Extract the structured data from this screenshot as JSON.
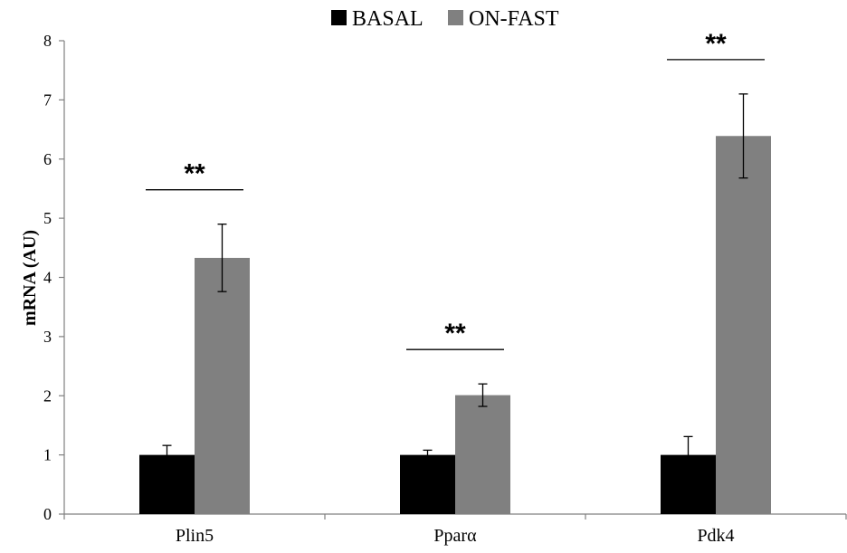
{
  "chart_data": {
    "type": "bar",
    "ylabel": "mRNA (AU)",
    "ylim": [
      0,
      8
    ],
    "yticks": [
      0,
      1,
      2,
      3,
      4,
      5,
      6,
      7,
      8
    ],
    "categories": [
      "Plin5",
      "Pparα",
      "Pdk4"
    ],
    "series": [
      {
        "name": "BASAL",
        "color": "#000000",
        "values": [
          1.0,
          1.0,
          1.0
        ],
        "errors": [
          0.16,
          0.08,
          0.31
        ]
      },
      {
        "name": "ON-FAST",
        "color": "#808080",
        "values": [
          4.33,
          2.01,
          6.39
        ],
        "errors": [
          0.57,
          0.19,
          0.71
        ]
      }
    ],
    "significance": [
      "**",
      "**",
      "**"
    ],
    "legend_position": "top-center",
    "grid": false
  }
}
